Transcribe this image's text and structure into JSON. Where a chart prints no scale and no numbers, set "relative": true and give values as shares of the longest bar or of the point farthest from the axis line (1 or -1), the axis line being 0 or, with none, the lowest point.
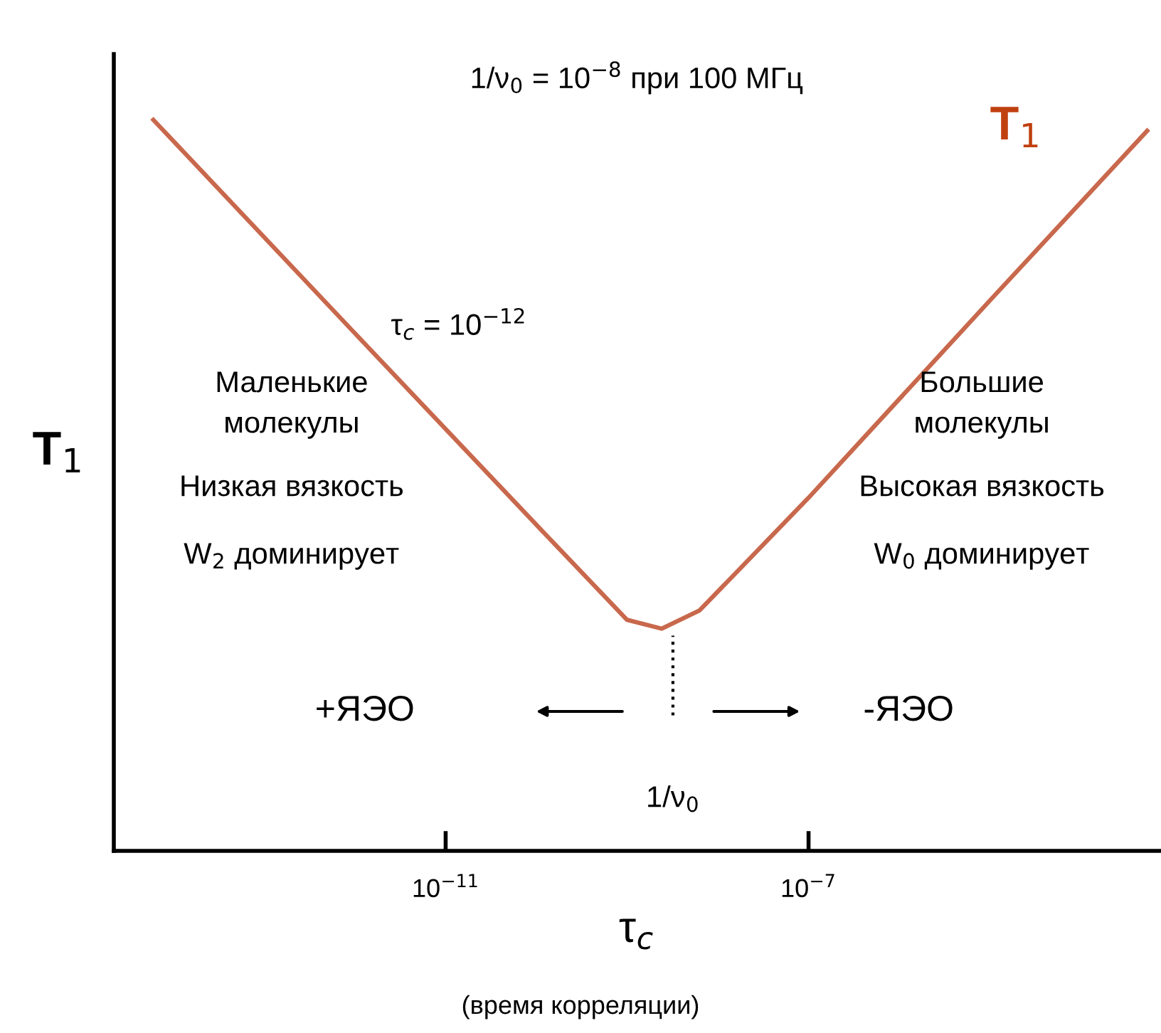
{
  "chart_data": {
    "type": "line",
    "relative": true,
    "log": "x",
    "xlabel": "τ$_{c}$",
    "ylabel": "T$_{1}$",
    "x": [
      6e-15,
      1e-12,
      1e-10,
      1e-09,
      2.4e-09,
      6.3e-09,
      1e-07,
      1e-05,
      0.00054
    ],
    "series": [
      {
        "name": "T$_{1}$",
        "color": "#c8684c",
        "values": [
          1,
          0.708,
          0.446,
          0.316,
          0.304,
          0.329,
          0.483,
          0.753,
          0.985
        ]
      }
    ],
    "xlim": [
      2.2e-15,
      0.00074
    ],
    "xticks": [
      {
        "value": 1e-11,
        "label": "10$^{−11}$"
      },
      {
        "value": 1e-07,
        "label": "10$^{−7}$"
      }
    ],
    "ref_lines": [
      {
        "axis": "x",
        "value": 3.2e-09,
        "label": "1/ν$_{0}$",
        "line_style": "dotted",
        "color": "#000000"
      }
    ],
    "annotations": [
      "1/ν$_{0}$ = 10$^{−8}$ при 100 МГц",
      "τ$_{c}$ = 10$^{−12}$",
      "Маленькие\nмолекулы",
      "Низкая вязкость",
      "W$_{2}$ доминирует",
      "Большие\nмолекулы",
      "Высокая вязкость",
      "W$_{0}$ доминирует",
      "+ЯЭО",
      "-ЯЭО",
      "(время корреляции)"
    ],
    "legend": false,
    "grid": false,
    "marker": "none",
    "line_style": "solid"
  }
}
